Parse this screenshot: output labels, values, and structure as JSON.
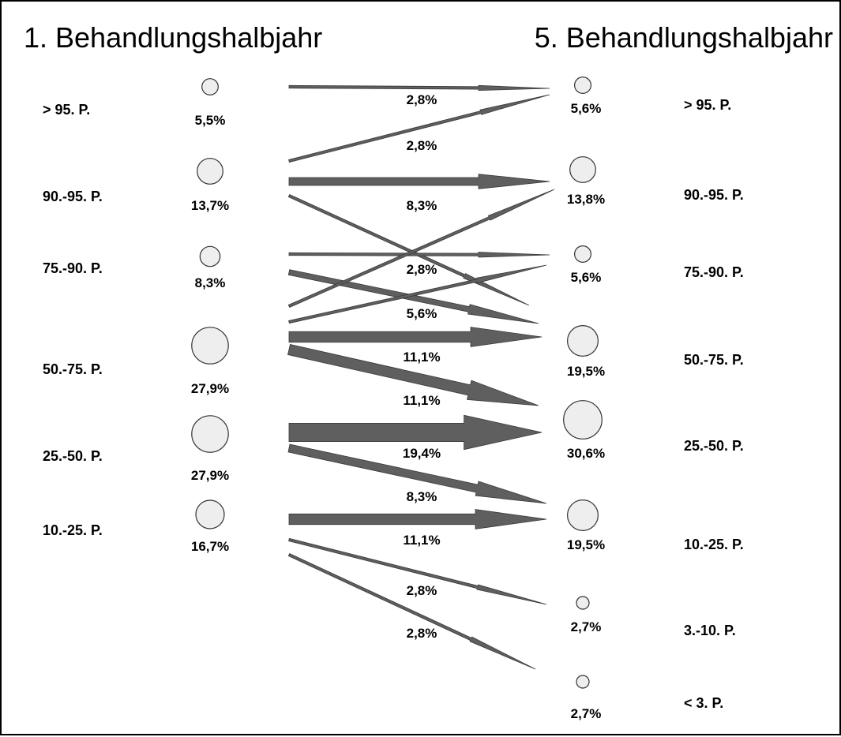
{
  "titles": {
    "left": "1. Behandlungshalbjahr",
    "right": "5. Behandlungshalbjahr"
  },
  "colors": {
    "arrow": "#5f5f5f",
    "arrow_stroke": "#3a3a3a",
    "node_fill": "#eeeeee",
    "node_stroke": "#333333"
  },
  "left_groups": [
    {
      "label": "> 95. P.",
      "percent": "5,5%",
      "value": 5.5
    },
    {
      "label": "90.-95. P.",
      "percent": "13,7%",
      "value": 13.7
    },
    {
      "label": "75.-90. P.",
      "percent": "8,3%",
      "value": 8.3
    },
    {
      "label": "50.-75. P.",
      "percent": "27,9%",
      "value": 27.9
    },
    {
      "label": "25.-50. P.",
      "percent": "27,9%",
      "value": 27.9
    },
    {
      "label": "10.-25. P.",
      "percent": "16,7%",
      "value": 16.7
    }
  ],
  "right_groups": [
    {
      "label": "> 95. P.",
      "percent": "5,6%",
      "value": 5.6
    },
    {
      "label": "90.-95. P.",
      "percent": "13,8%",
      "value": 13.8
    },
    {
      "label": "75.-90. P.",
      "percent": "5,6%",
      "value": 5.6
    },
    {
      "label": "50.-75. P.",
      "percent": "19,5%",
      "value": 19.5
    },
    {
      "label": "25.-50. P.",
      "percent": "30,6%",
      "value": 30.6
    },
    {
      "label": "10.-25. P.",
      "percent": "19,5%",
      "value": 19.5
    },
    {
      "label": "3.-10. P.",
      "percent": "2,7%",
      "value": 2.7
    },
    {
      "label": "< 3. P.",
      "percent": "2,7%",
      "value": 2.7
    }
  ],
  "flows": [
    {
      "from": "> 95. P.",
      "to": "> 95. P.",
      "percent": "2,8%",
      "value": 2.8
    },
    {
      "from": "90.-95. P.",
      "to": "> 95. P.",
      "percent": "2,8%",
      "value": 2.8
    },
    {
      "from": "90.-95. P.",
      "to": "90.-95. P.",
      "percent": "8,3%",
      "value": 8.3
    },
    {
      "from": "90.-95. P.",
      "to": "50.-75. P.",
      "percent": "2,8%",
      "value": 2.8
    },
    {
      "from": "75.-90. P.",
      "to": "75.-90. P.",
      "percent": "",
      "value": 2.8
    },
    {
      "from": "75.-90. P.",
      "to": "50.-75. P.",
      "percent": "5,6%",
      "value": 5.6
    },
    {
      "from": "50.-75. P.",
      "to": "90.-95. P.",
      "percent": "",
      "value": 2.8
    },
    {
      "from": "50.-75. P.",
      "to": "75.-90. P.",
      "percent": "",
      "value": 2.8
    },
    {
      "from": "50.-75. P.",
      "to": "50.-75. P.",
      "percent": "11,1%",
      "value": 11.1
    },
    {
      "from": "50.-75. P.",
      "to": "25.-50. P.",
      "percent": "11,1%",
      "value": 11.1
    },
    {
      "from": "25.-50. P.",
      "to": "25.-50. P.",
      "percent": "19,4%",
      "value": 19.4
    },
    {
      "from": "25.-50. P.",
      "to": "10.-25. P.",
      "percent": "8,3%",
      "value": 8.3
    },
    {
      "from": "10.-25. P.",
      "to": "10.-25. P.",
      "percent": "11,1%",
      "value": 11.1
    },
    {
      "from": "10.-25. P.",
      "to": "3.-10. P.",
      "percent": "2,8%",
      "value": 2.8
    },
    {
      "from": "10.-25. P.",
      "to": "< 3. P.",
      "percent": "2,8%",
      "value": 2.8
    }
  ]
}
